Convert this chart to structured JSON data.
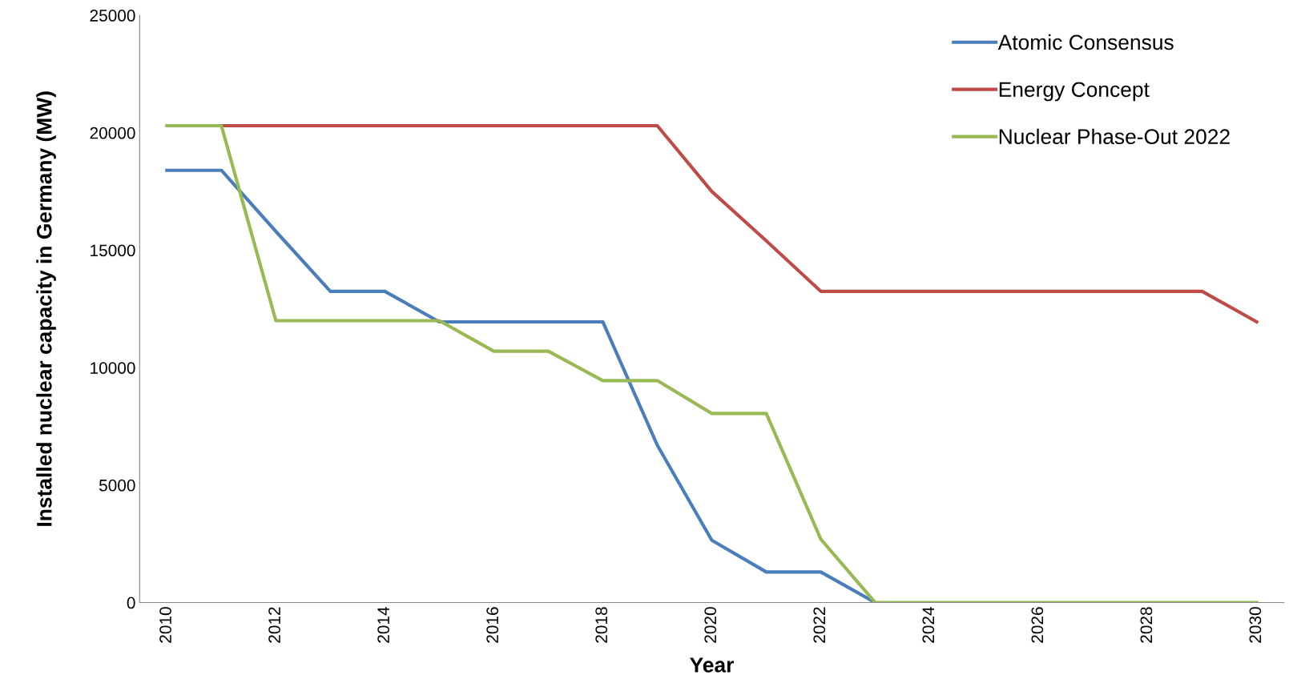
{
  "chart_data": {
    "type": "line",
    "xlabel": "Year",
    "ylabel": "Installed nuclear capacity in Germany (MW)",
    "categories": [
      "2010",
      null,
      "2012",
      null,
      "2014",
      null,
      "2016",
      null,
      "2018",
      null,
      "2020",
      null,
      "2022",
      null,
      "2024",
      null,
      "2026",
      null,
      "2028",
      null,
      "2030"
    ],
    "series": [
      {
        "name": "Atomic Consensus",
        "color": "#4a7ebb",
        "values": [
          18400,
          18400,
          15800,
          13250,
          13250,
          11950,
          11950,
          11950,
          11950,
          6700,
          2650,
          1300,
          1300,
          0,
          null,
          null,
          null,
          null,
          null,
          null,
          null
        ]
      },
      {
        "name": "Energy Concept",
        "color": "#be4b48",
        "values": [
          null,
          20300,
          20300,
          20300,
          20300,
          20300,
          20300,
          20300,
          20300,
          20300,
          17500,
          15400,
          13250,
          13250,
          13250,
          13250,
          13250,
          13250,
          13250,
          13250,
          11950
        ]
      },
      {
        "name": "Nuclear Phase-Out 2022",
        "color": "#98b954",
        "values": [
          20300,
          20300,
          12000,
          12000,
          12000,
          12000,
          10700,
          10700,
          9450,
          9450,
          8050,
          8050,
          2700,
          0,
          0,
          0,
          0,
          0,
          0,
          0,
          0
        ]
      }
    ],
    "ylim": [
      0,
      25000
    ],
    "yticks": [
      0,
      5000,
      10000,
      15000,
      20000,
      25000
    ],
    "grid": false,
    "legend": "top right",
    "marker": "none",
    "line_style": "solid"
  }
}
